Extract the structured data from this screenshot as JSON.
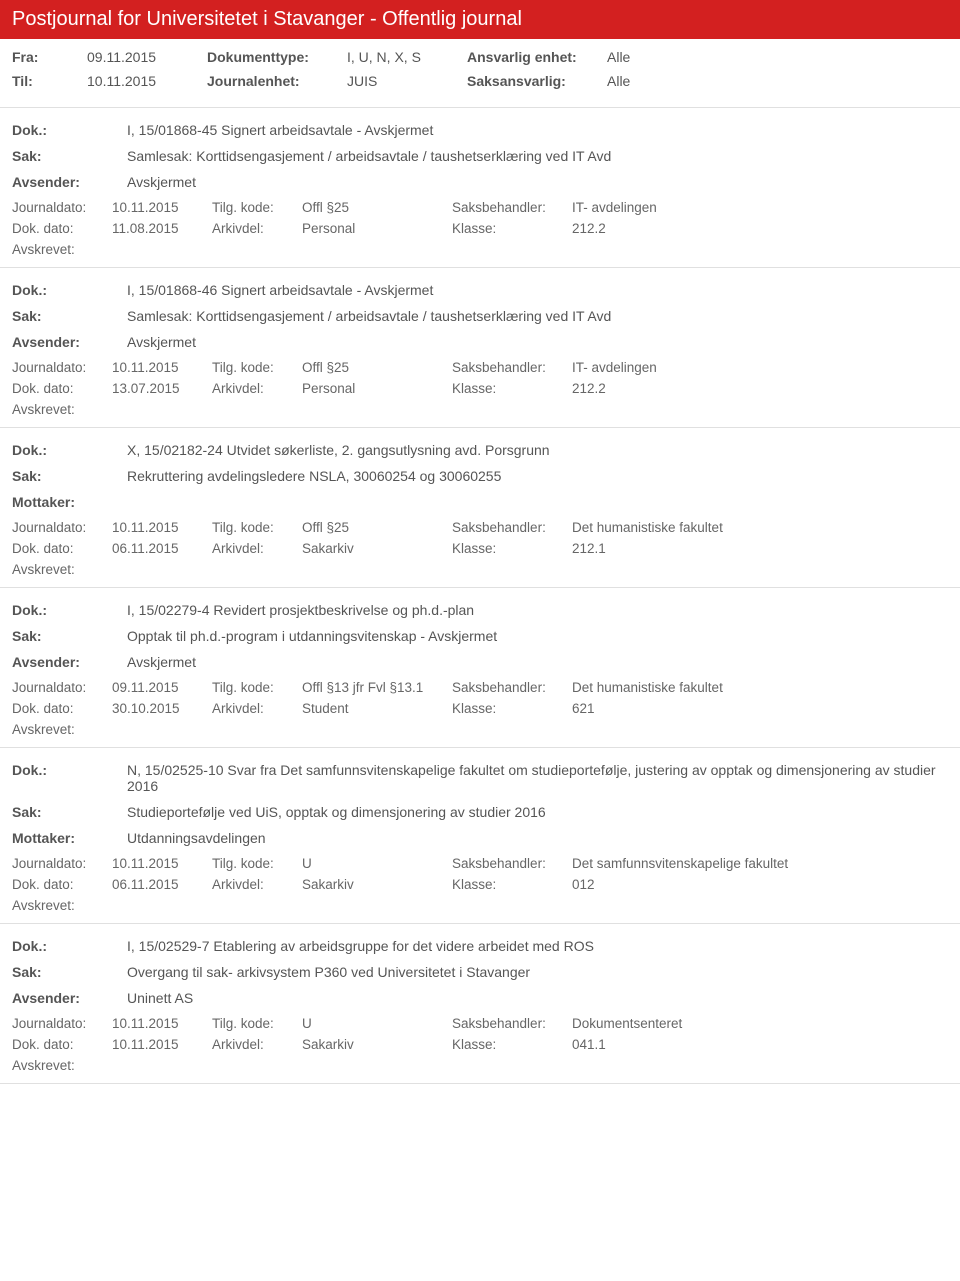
{
  "title": "Postjournal for Universitetet i Stavanger - Offentlig journal",
  "meta": {
    "fra_label": "Fra:",
    "fra": "09.11.2015",
    "til_label": "Til:",
    "til": "10.11.2015",
    "doktype_label": "Dokumenttype:",
    "doktype": "I, U, N, X, S",
    "journalenhet_label": "Journalenhet:",
    "journalenhet": "JUIS",
    "ansvarlig_label": "Ansvarlig enhet:",
    "ansvarlig": "Alle",
    "saksansvarlig_label": "Saksansvarlig:",
    "saksansvarlig": "Alle"
  },
  "labels": {
    "dok": "Dok.:",
    "sak": "Sak:",
    "avsender": "Avsender:",
    "mottaker": "Mottaker:",
    "journaldato": "Journaldato:",
    "dokdato": "Dok. dato:",
    "tilgkode": "Tilg. kode:",
    "arkivdel": "Arkivdel:",
    "saksbehandler": "Saksbehandler:",
    "klasse": "Klasse:",
    "avskrevet": "Avskrevet:"
  },
  "entries": [
    {
      "dok": "I, 15/01868-45 Signert arbeidsavtale - Avskjermet",
      "sak": "Samlesak: Korttidsengasjement / arbeidsavtale / taushetserklæring ved IT Avd",
      "party_label": "Avsender:",
      "party": "Avskjermet",
      "journaldato": "10.11.2015",
      "tilgkode": "Offl §25",
      "saksbehandler": "IT- avdelingen",
      "dokdato": "11.08.2015",
      "arkivdel": "Personal",
      "klasse": "212.2"
    },
    {
      "dok": "I, 15/01868-46 Signert arbeidsavtale - Avskjermet",
      "sak": "Samlesak: Korttidsengasjement / arbeidsavtale / taushetserklæring ved IT Avd",
      "party_label": "Avsender:",
      "party": "Avskjermet",
      "journaldato": "10.11.2015",
      "tilgkode": "Offl §25",
      "saksbehandler": "IT- avdelingen",
      "dokdato": "13.07.2015",
      "arkivdel": "Personal",
      "klasse": "212.2"
    },
    {
      "dok": "X, 15/02182-24 Utvidet søkerliste, 2. gangsutlysning avd. Porsgrunn",
      "sak": "Rekruttering avdelingsledere NSLA, 30060254 og 30060255",
      "party_label": "Mottaker:",
      "party": "",
      "journaldato": "10.11.2015",
      "tilgkode": "Offl §25",
      "saksbehandler": "Det humanistiske fakultet",
      "dokdato": "06.11.2015",
      "arkivdel": "Sakarkiv",
      "klasse": "212.1"
    },
    {
      "dok": "I, 15/02279-4 Revidert prosjektbeskrivelse og ph.d.-plan",
      "sak": "Opptak til ph.d.-program i utdanningsvitenskap - Avskjermet",
      "party_label": "Avsender:",
      "party": "Avskjermet",
      "journaldato": "09.11.2015",
      "tilgkode": "Offl §13 jfr Fvl §13.1",
      "saksbehandler": "Det humanistiske fakultet",
      "dokdato": "30.10.2015",
      "arkivdel": "Student",
      "klasse": "621"
    },
    {
      "dok": "N, 15/02525-10 Svar fra Det samfunnsvitenskapelige fakultet om studieportefølje, justering av opptak og dimensjonering av studier 2016",
      "sak": "Studieportefølje ved UiS, opptak og dimensjonering av studier 2016",
      "party_label": "Mottaker:",
      "party": "Utdanningsavdelingen",
      "journaldato": "10.11.2015",
      "tilgkode": "U",
      "saksbehandler": "Det samfunnsvitenskapelige fakultet",
      "dokdato": "06.11.2015",
      "arkivdel": "Sakarkiv",
      "klasse": "012"
    },
    {
      "dok": "I, 15/02529-7 Etablering av arbeidsgruppe for det videre arbeidet med ROS",
      "sak": "Overgang til sak- arkivsystem P360 ved Universitetet i Stavanger",
      "party_label": "Avsender:",
      "party": "Uninett AS",
      "journaldato": "10.11.2015",
      "tilgkode": "U",
      "saksbehandler": "Dokumentsenteret",
      "dokdato": "10.11.2015",
      "arkivdel": "Sakarkiv",
      "klasse": "041.1"
    }
  ]
}
